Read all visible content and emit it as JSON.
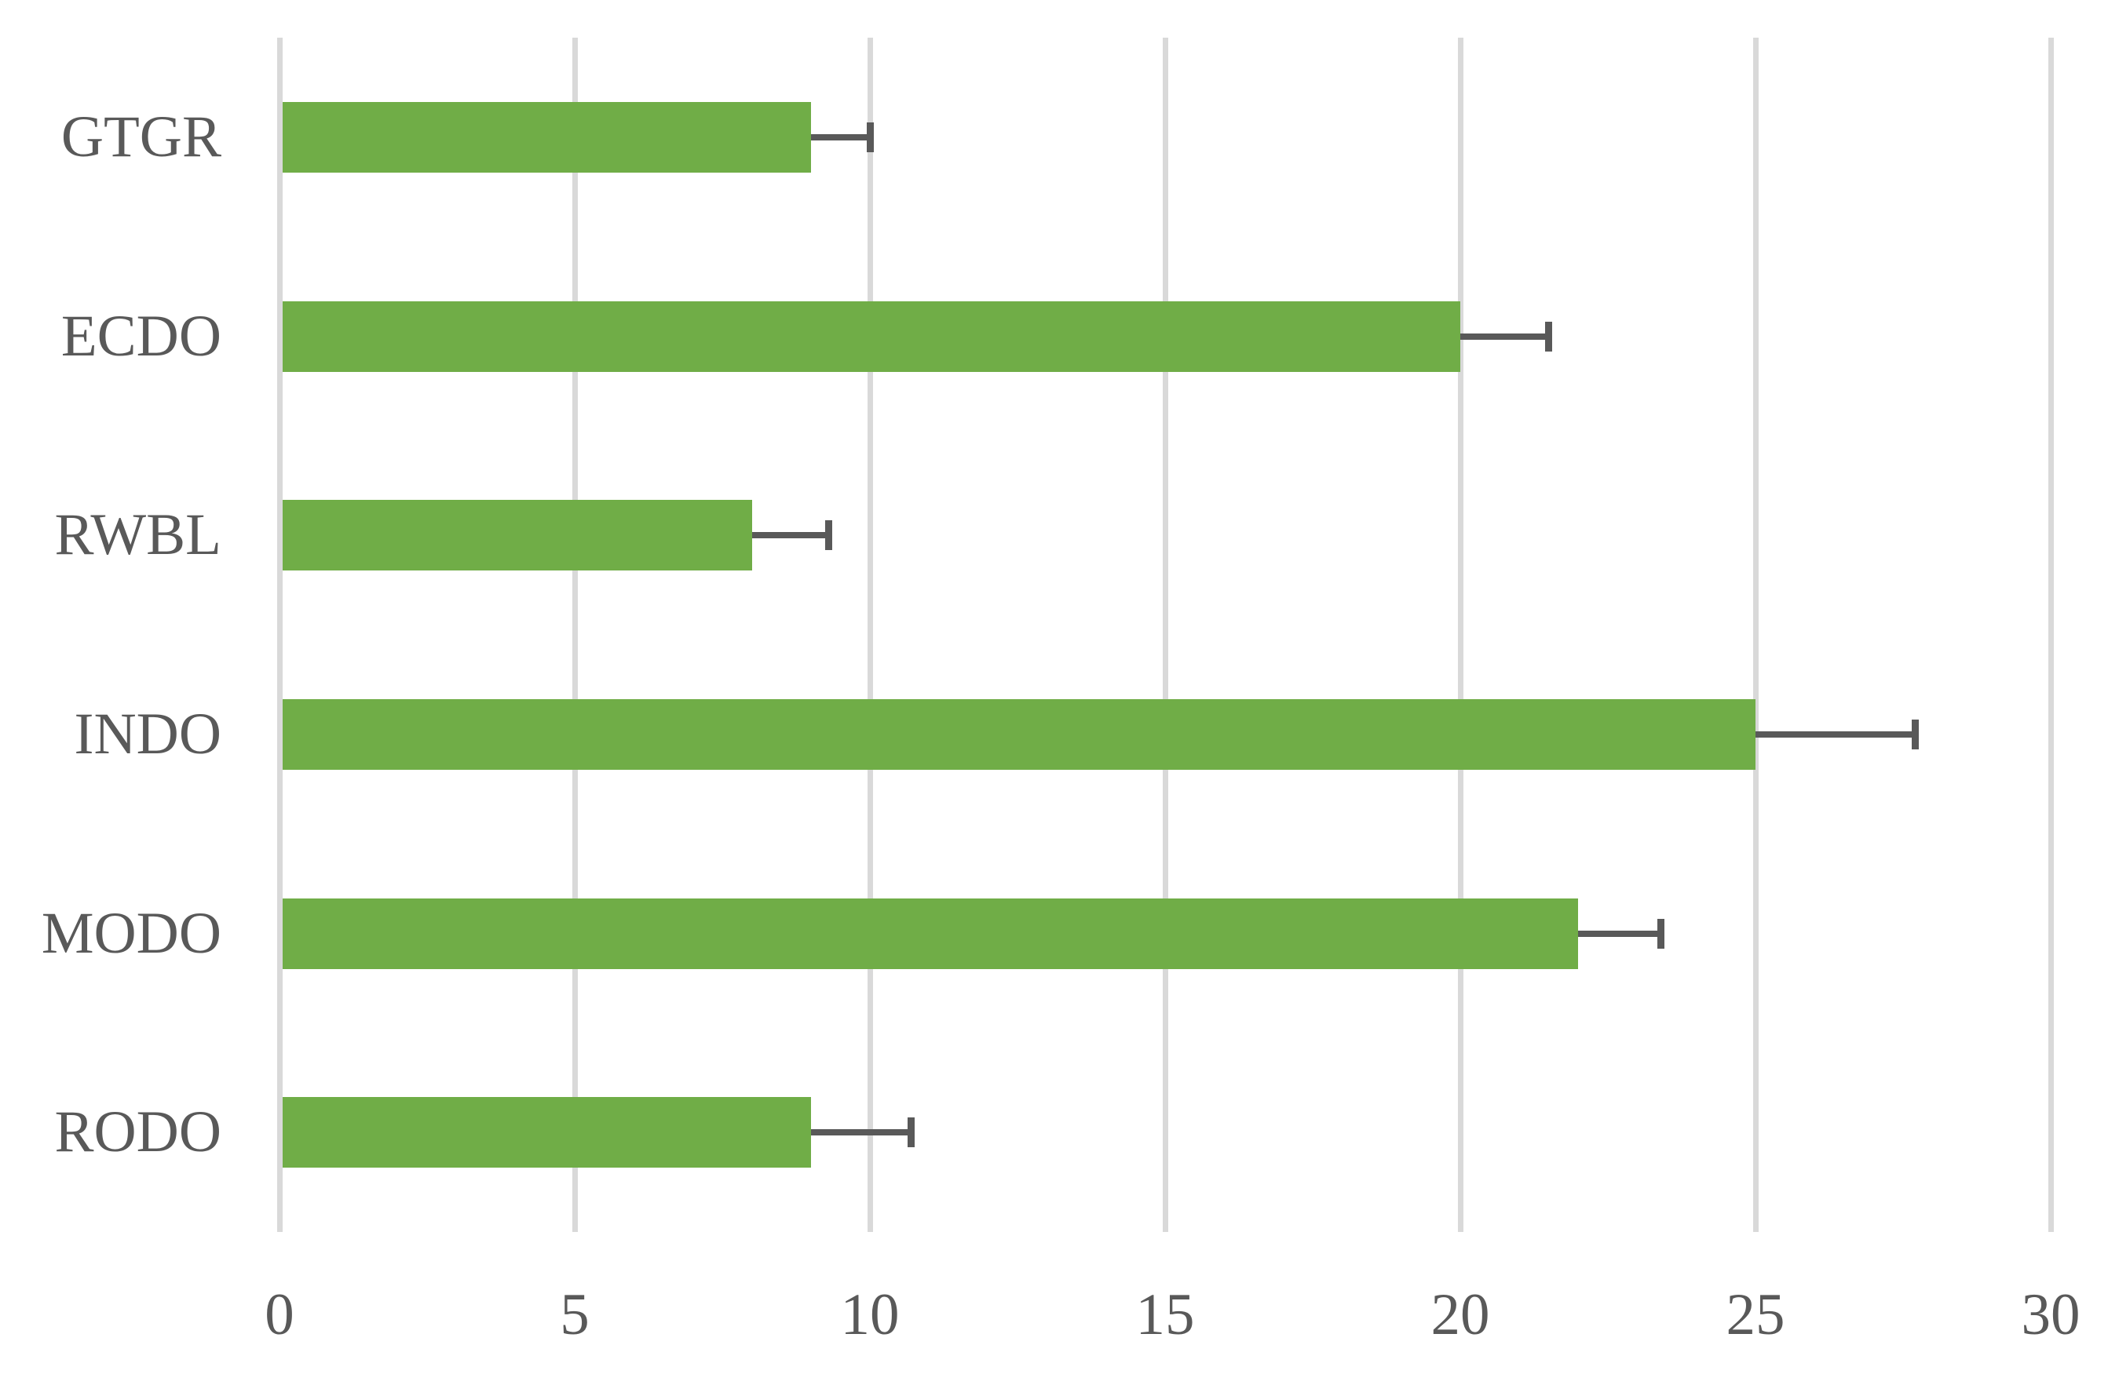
{
  "chart_data": {
    "type": "bar",
    "orientation": "horizontal",
    "title": "",
    "xlabel": "",
    "ylabel": "",
    "categories": [
      "GTGR",
      "ECDO",
      "RWBL",
      "INDO",
      "MODO",
      "RODO"
    ],
    "values": [
      9,
      20,
      8,
      25,
      22,
      9
    ],
    "errors_plus": [
      1,
      1.5,
      1.3,
      2.7,
      1.4,
      1.7
    ],
    "xlim": [
      0,
      30
    ],
    "xticks": [
      0,
      5,
      10,
      15,
      20,
      25,
      30
    ],
    "grid": "vertical-only",
    "legend": "none",
    "colors": {
      "bar": "#70ad47",
      "error_bar": "#595959",
      "gridline": "#d9d9d9",
      "tick_text": "#595959",
      "background": "#ffffff"
    }
  }
}
